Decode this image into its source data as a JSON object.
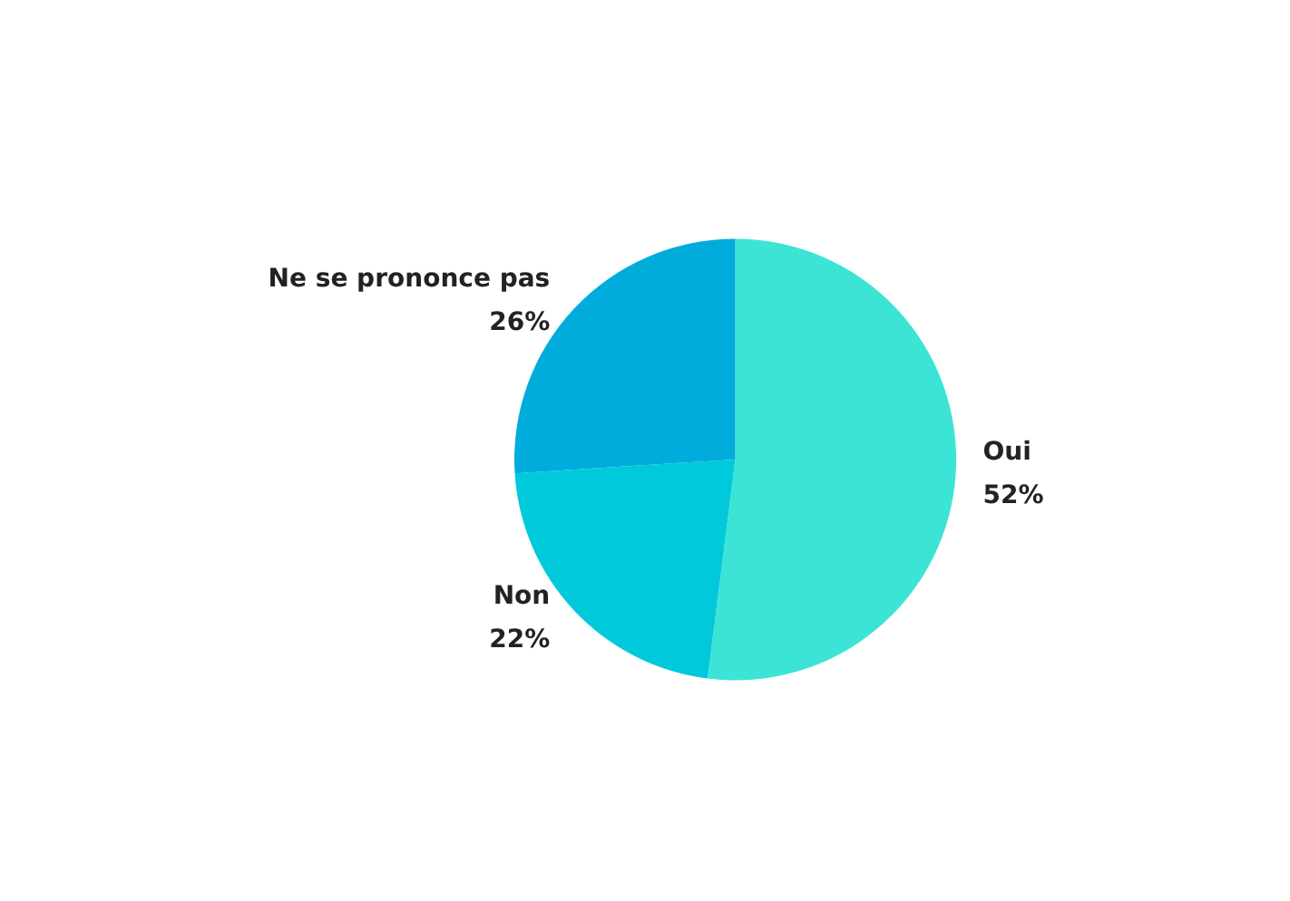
{
  "chart_data": {
    "type": "pie",
    "categories": [
      "Oui",
      "Non",
      "Ne se prononce pas"
    ],
    "values": [
      52,
      22,
      26
    ],
    "colors": [
      "#3ce4d6",
      "#00c9dc",
      "#00acdc"
    ],
    "value_labels": [
      "52%",
      "22%",
      "26%"
    ],
    "legend": false
  }
}
